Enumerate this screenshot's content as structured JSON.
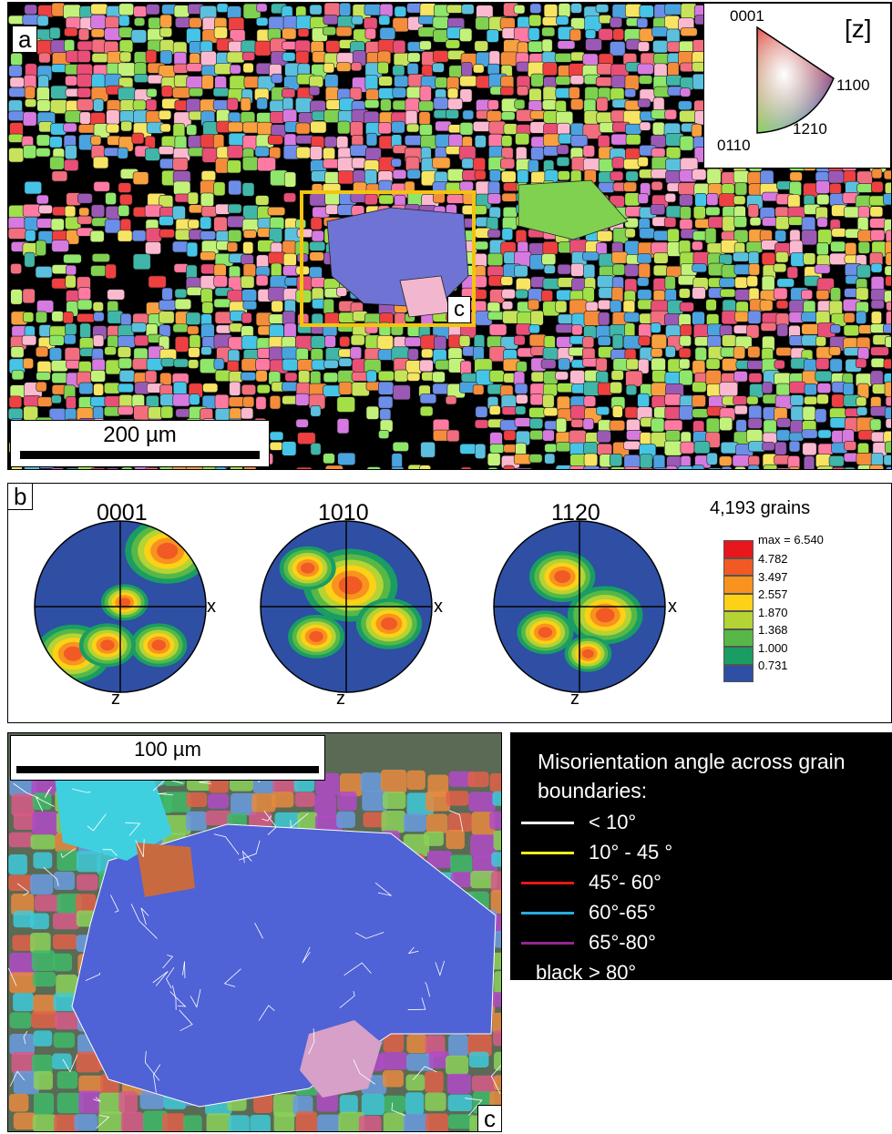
{
  "panel_a": {
    "label": "a",
    "ipf_key": {
      "corner_top": "0001",
      "axis": "[z]",
      "corner_right": "1̅1̅⃝00",
      "corner_right_text": "1100",
      "corner_bottom_mid": "1210",
      "corner_bottom_left": "0110"
    },
    "scalebar": "200 µm",
    "inset_label": "c",
    "inset_box_color": "#f2c40f"
  },
  "panel_b": {
    "label": "b",
    "pole_figures": [
      {
        "title": "0001",
        "x_axis": "x",
        "z_axis": "z"
      },
      {
        "title": "1010",
        "x_axis": "x",
        "z_axis": "z"
      },
      {
        "title": "1120",
        "x_axis": "x",
        "z_axis": "z"
      }
    ],
    "legend": {
      "title": "4,193 grains",
      "max_label": "max = 6.540",
      "levels": [
        "4.782",
        "3.497",
        "2.557",
        "1.870",
        "1.368",
        "1.000",
        "0.731"
      ],
      "colors": [
        "#e8171b",
        "#f15a24",
        "#f7931e",
        "#fcd116",
        "#b5d334",
        "#57b847",
        "#1a9d63",
        "#2e4fa3"
      ]
    }
  },
  "panel_c": {
    "label": "c",
    "scalebar": "100 µm"
  },
  "misorientation_legend": {
    "header": "Misorientation angle across grain boundaries:",
    "rows": [
      {
        "color": "#ffffff",
        "label": "< 10°"
      },
      {
        "color": "#f4ef1a",
        "label": "10° - 45 °"
      },
      {
        "color": "#e8171b",
        "label": "45°- 60°"
      },
      {
        "color": "#29abe2",
        "label": "60°-65°"
      },
      {
        "color": "#93278f",
        "label": "65°-80°"
      },
      {
        "color": "#000000",
        "label": "> 80°",
        "prefix": "black"
      }
    ]
  }
}
